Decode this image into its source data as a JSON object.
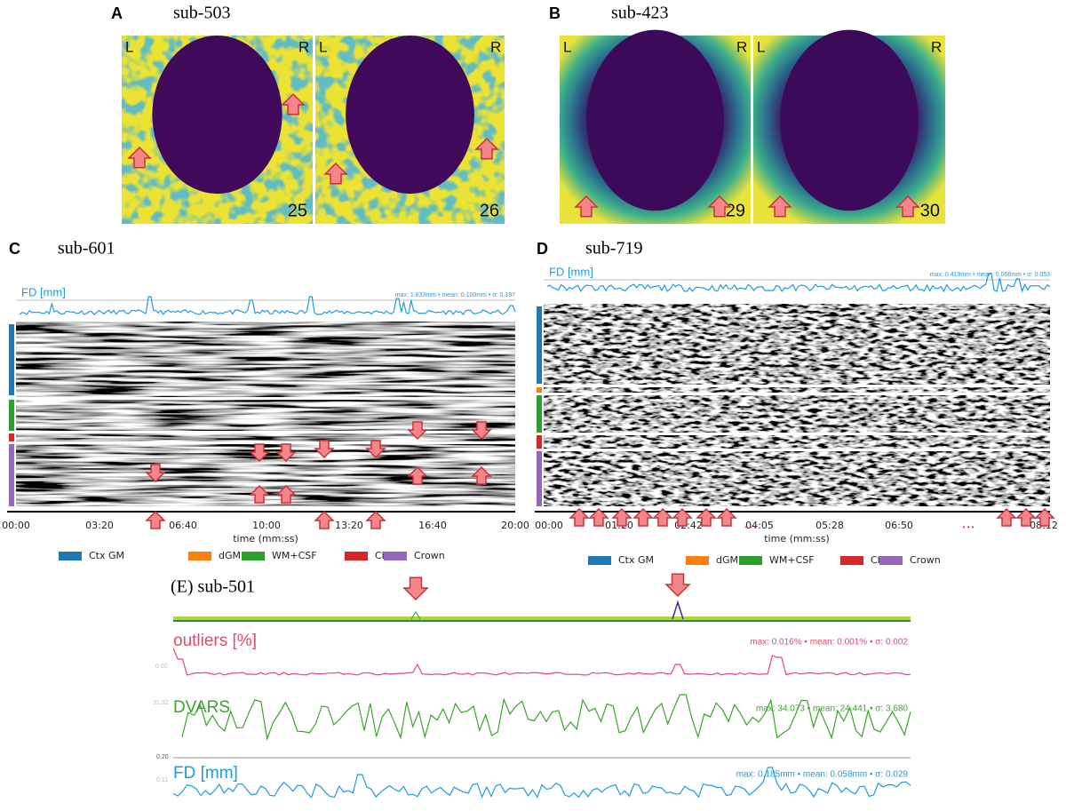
{
  "panels": {
    "A": {
      "label": "A",
      "subject": "sub-503",
      "left": "L",
      "right": "R",
      "slices": [
        "25",
        "26"
      ]
    },
    "B": {
      "label": "B",
      "subject": "sub-423",
      "left": "L",
      "right": "R",
      "slices": [
        "29",
        "30"
      ]
    },
    "C": {
      "label": "C",
      "subject": "sub-601",
      "fd_label": "FD [mm]",
      "fd_stats": "max: 1.833mm • mean: 0.100mm • σ: 0.197",
      "time_ticks": [
        "00:00",
        "03:20",
        "06:40",
        "10:00",
        "13:20",
        "16:40",
        "20:00"
      ],
      "x_label": "time (mm:ss)"
    },
    "D": {
      "label": "D",
      "subject": "sub-719",
      "fd_label": "FD [mm]",
      "fd_stats": "max: 0.419mm • mean: 0.066mm • σ: 0.053",
      "time_ticks": [
        "00:00",
        "01:20",
        "02:42",
        "04:05",
        "05:28",
        "06:50",
        "08:12"
      ],
      "ellipsis": "• • •",
      "x_label": "time (mm:ss)"
    },
    "E": {
      "title": "(E) sub-501",
      "outliers_label": "outliers [%]",
      "outliers_stats": "max: 0.016% • mean: 0.001% • σ: 0.002",
      "outliers_axis": "0.00",
      "dvars_label": "DVARS",
      "dvars_stats": "max: 34.073 • mean: 24.441 • σ: 3.680",
      "dvars_axis": "31.32",
      "fd_label": "FD [mm]",
      "fd_stats": "max: 0.185mm • mean: 0.058mm • σ: 0.029",
      "fd_axis_top": "0.20",
      "fd_axis": "0.11"
    }
  },
  "legend": [
    {
      "name": "Ctx GM",
      "color": "#1f77b4"
    },
    {
      "name": "dGM",
      "color": "#ff7f0e"
    },
    {
      "name": "WM+CSF",
      "color": "#2ca02c"
    },
    {
      "name": "Cb",
      "color": "#d62728"
    },
    {
      "name": "Crown",
      "color": "#9467bd"
    }
  ]
}
